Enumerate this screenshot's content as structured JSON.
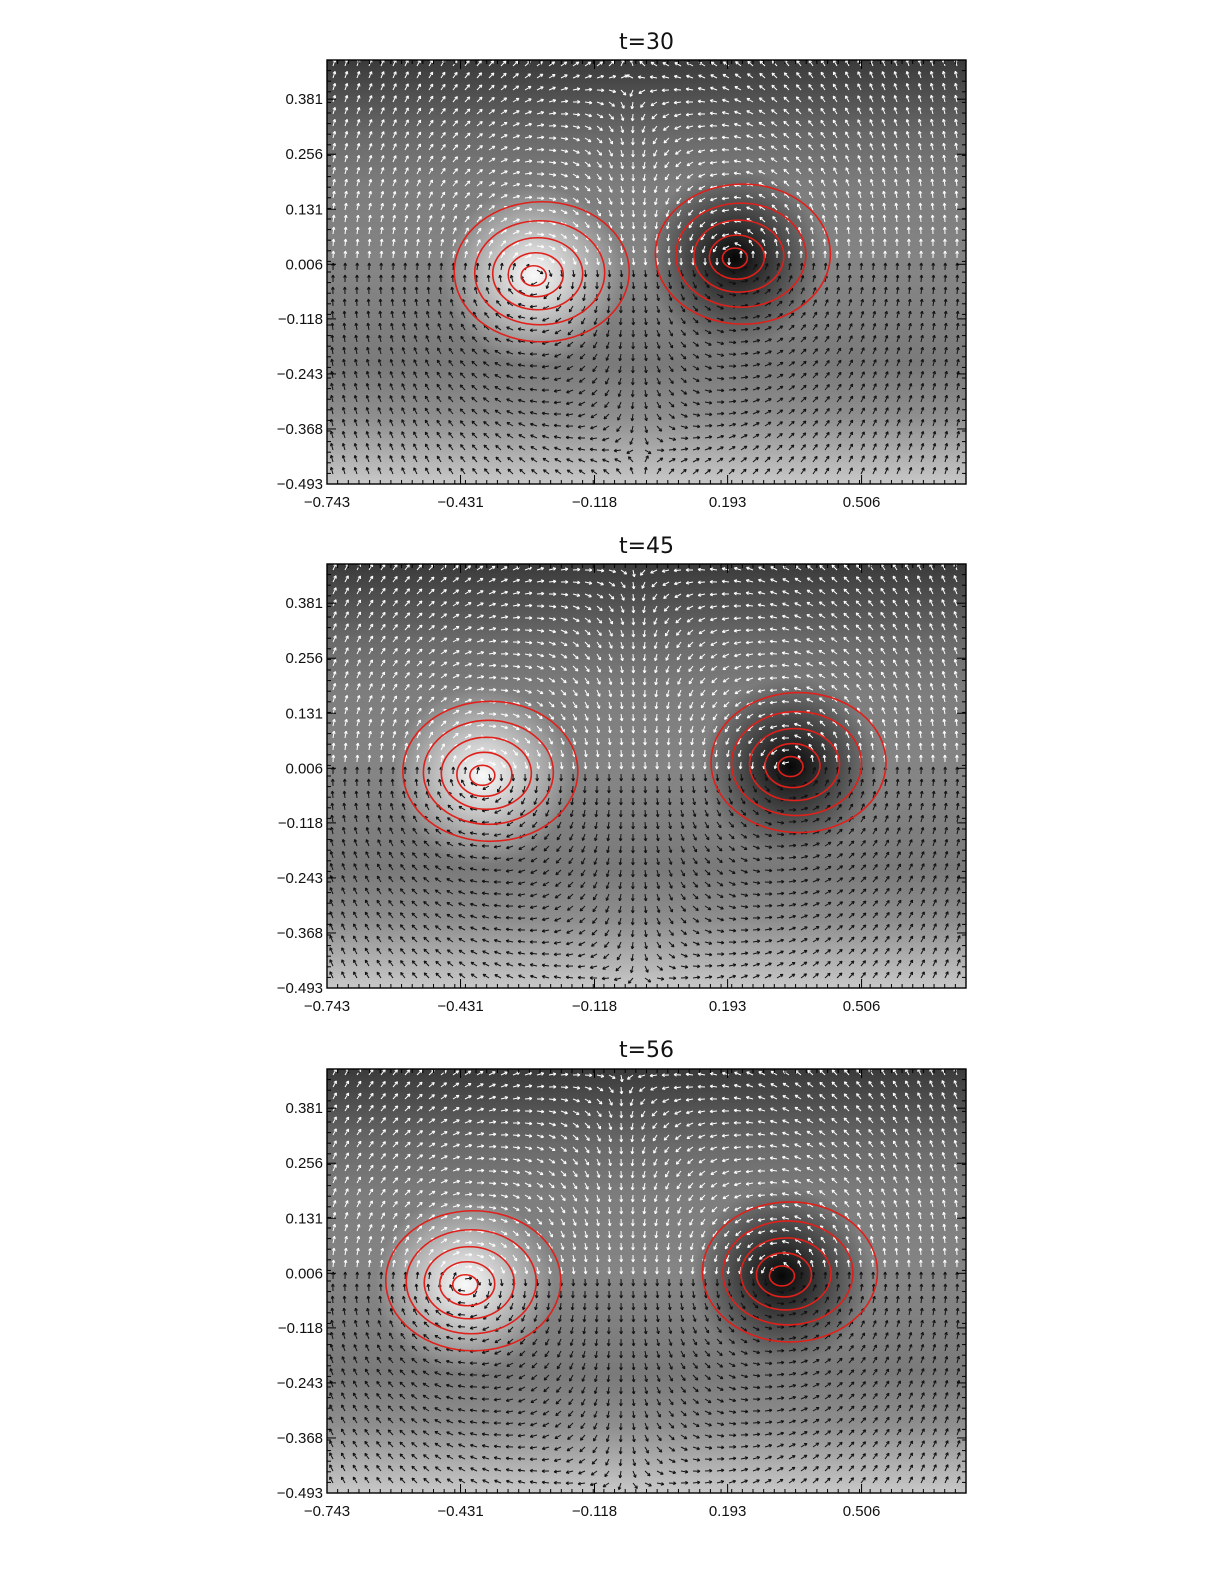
{
  "figure": {
    "background": "#ffffff",
    "contour_color": "#e0201a",
    "arrow_light": "#ffffff",
    "arrow_dark": "#111111"
  },
  "chart_data": [
    {
      "type": "heatmap",
      "title": "t=30",
      "xlim": [
        -0.743,
        0.75
      ],
      "ylim": [
        -0.493,
        0.47
      ],
      "x_ticks": [
        "−0.743",
        "−0.431",
        "−0.118",
        "0.193",
        "0.506"
      ],
      "x_tick_values": [
        -0.743,
        -0.431,
        -0.118,
        0.193,
        0.506
      ],
      "y_ticks": [
        "0.381",
        "0.256",
        "0.131",
        "0.006",
        "−0.118",
        "−0.243",
        "−0.368",
        "−0.493"
      ],
      "y_tick_values": [
        0.381,
        0.256,
        0.131,
        0.006,
        -0.118,
        -0.243,
        -0.368,
        -0.493
      ],
      "vortices": [
        {
          "kind": "bright",
          "x": -0.26,
          "y": -0.02
        },
        {
          "kind": "dark",
          "x": 0.21,
          "y": 0.02
        }
      ],
      "overlays": [
        "grayscale field",
        "velocity arrows",
        "red contours"
      ]
    },
    {
      "type": "heatmap",
      "title": "t=45",
      "xlim": [
        -0.743,
        0.75
      ],
      "ylim": [
        -0.493,
        0.47
      ],
      "x_ticks": [
        "−0.743",
        "−0.431",
        "−0.118",
        "0.193",
        "0.506"
      ],
      "x_tick_values": [
        -0.743,
        -0.431,
        -0.118,
        0.193,
        0.506
      ],
      "y_ticks": [
        "0.381",
        "0.256",
        "0.131",
        "0.006",
        "−0.118",
        "−0.243",
        "−0.368",
        "−0.493"
      ],
      "y_tick_values": [
        0.381,
        0.256,
        0.131,
        0.006,
        -0.118,
        -0.243,
        -0.368,
        -0.493
      ],
      "vortices": [
        {
          "kind": "bright",
          "x": -0.38,
          "y": -0.01
        },
        {
          "kind": "dark",
          "x": 0.34,
          "y": 0.01
        }
      ],
      "overlays": [
        "grayscale field",
        "velocity arrows",
        "red contours"
      ]
    },
    {
      "type": "heatmap",
      "title": "t=56",
      "xlim": [
        -0.743,
        0.75
      ],
      "ylim": [
        -0.493,
        0.47
      ],
      "x_ticks": [
        "−0.743",
        "−0.431",
        "−0.118",
        "0.193",
        "0.506"
      ],
      "x_tick_values": [
        -0.743,
        -0.431,
        -0.118,
        0.193,
        0.506
      ],
      "y_ticks": [
        "0.381",
        "0.256",
        "0.131",
        "0.006",
        "−0.118",
        "−0.243",
        "−0.368",
        "−0.493"
      ],
      "y_tick_values": [
        0.381,
        0.256,
        0.131,
        0.006,
        -0.118,
        -0.243,
        -0.368,
        -0.493
      ],
      "vortices": [
        {
          "kind": "bright",
          "x": -0.42,
          "y": -0.02
        },
        {
          "kind": "dark",
          "x": 0.32,
          "y": 0.0
        }
      ],
      "overlays": [
        "grayscale field",
        "velocity arrows",
        "red contours"
      ]
    }
  ]
}
